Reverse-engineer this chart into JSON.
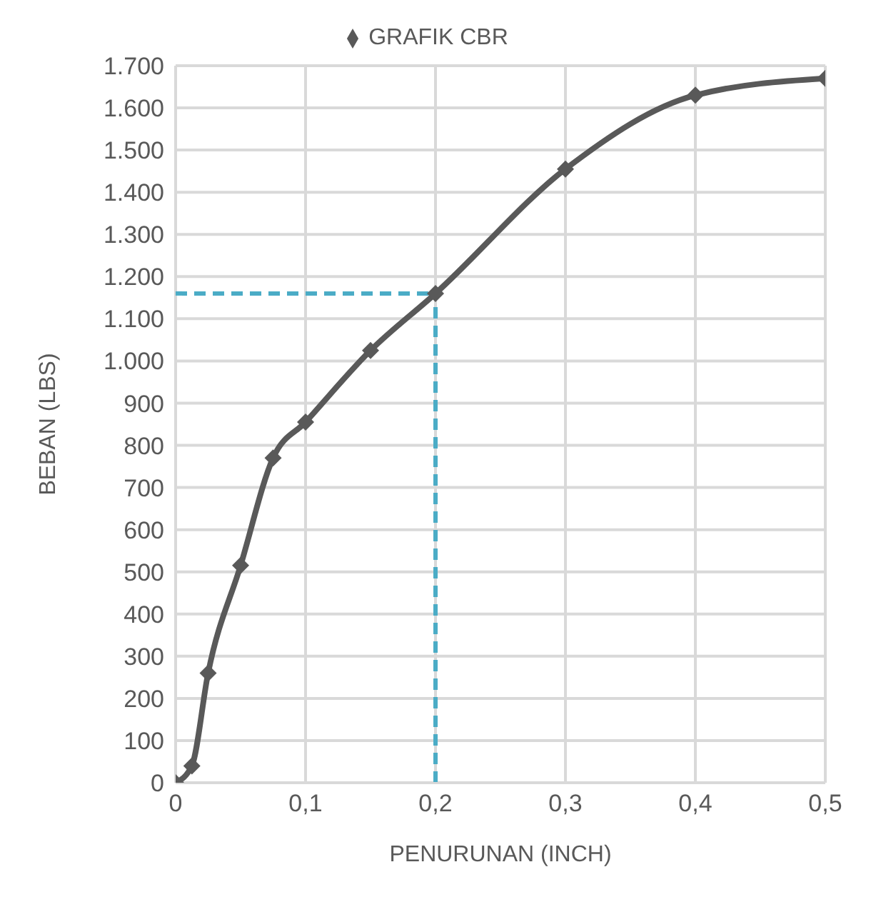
{
  "chart_data": {
    "type": "line",
    "xlabel": "PENURUNAN (INCH)",
    "ylabel": "BEBAN (LBS)",
    "x": [
      0,
      0.0125,
      0.025,
      0.05,
      0.075,
      0.1,
      0.15,
      0.2,
      0.3,
      0.4,
      0.5
    ],
    "series": [
      {
        "name": "GRAFIK CBR",
        "color": "#595959",
        "values": [
          0,
          40,
          260,
          515,
          770,
          855,
          1025,
          1160,
          1455,
          1630,
          1670
        ]
      }
    ],
    "xlim": [
      0,
      0.5
    ],
    "xticks": [
      0,
      {
        "value": 0.1,
        "label": "0,1"
      },
      {
        "value": 0.2,
        "label": "0,2"
      },
      {
        "value": 0.3,
        "label": "0,3"
      },
      {
        "value": 0.4,
        "label": "0,4"
      },
      {
        "value": 0.5,
        "label": "0,5"
      }
    ],
    "ylim": [
      0,
      1700
    ],
    "yticks": [
      0,
      100,
      200,
      300,
      400,
      500,
      600,
      700,
      800,
      900,
      {
        "value": 1000,
        "label": "1.000"
      },
      {
        "value": 1100,
        "label": "1.100"
      },
      {
        "value": 1200,
        "label": "1.200"
      },
      {
        "value": 1300,
        "label": "1.300"
      },
      {
        "value": 1400,
        "label": "1.400"
      },
      {
        "value": 1500,
        "label": "1.500"
      },
      {
        "value": 1600,
        "label": "1.600"
      },
      {
        "value": 1700,
        "label": "1.700"
      }
    ],
    "ref_lines": [
      {
        "axis": "y",
        "value": 1160,
        "color": "#4bacc6",
        "line_style": "dashed"
      },
      {
        "axis": "x",
        "value": 0.2,
        "color": "#4bacc6",
        "line_style": "dashed"
      }
    ],
    "grid": true,
    "legend": "top",
    "marker": "diamond",
    "line_style": "solid"
  }
}
